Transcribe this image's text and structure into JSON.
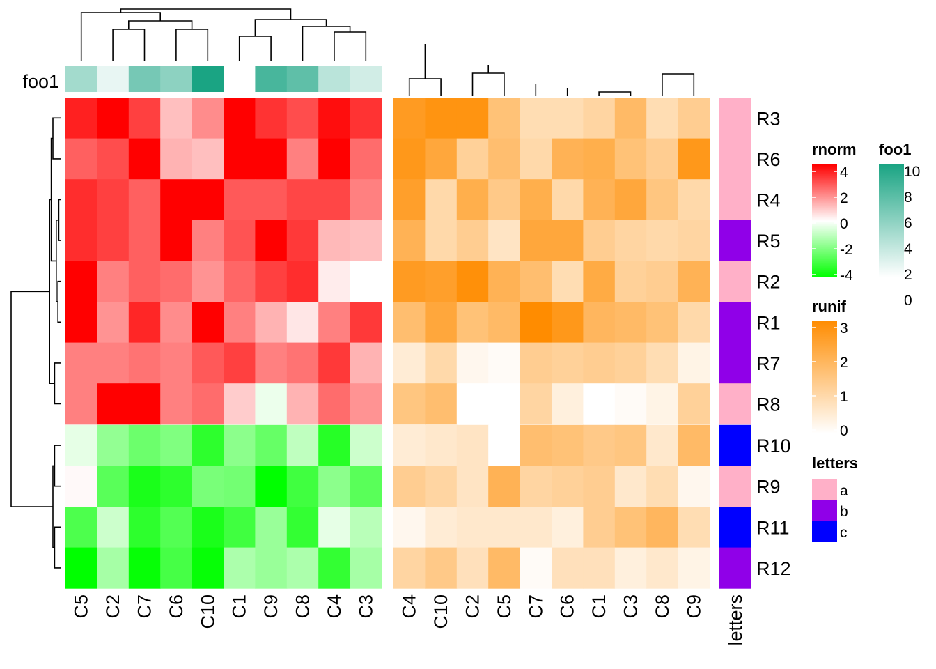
{
  "chart_data": {
    "type": "heatmap",
    "rows": [
      "R3",
      "R6",
      "R4",
      "R5",
      "R2",
      "R1",
      "R7",
      "R8",
      "R10",
      "R9",
      "R11",
      "R12"
    ],
    "heatmaps": [
      {
        "name": "rnorm",
        "columns": [
          "C5",
          "C2",
          "C7",
          "C6",
          "C10",
          "C1",
          "C9",
          "C8",
          "C4",
          "C3"
        ],
        "top_annotation": {
          "name": "foo1",
          "values": [
            4,
            1,
            6,
            5,
            10,
            0,
            8,
            7,
            3,
            2
          ]
        },
        "values": [
          [
            3.5,
            4.0,
            3.0,
            1.0,
            1.8,
            4.0,
            3.2,
            2.8,
            3.8,
            3.2
          ],
          [
            2.5,
            2.8,
            4.0,
            1.2,
            1.0,
            4.0,
            4.0,
            2.0,
            4.0,
            2.3
          ],
          [
            3.3,
            3.0,
            2.5,
            4.0,
            4.0,
            2.6,
            2.6,
            2.9,
            2.9,
            2.0
          ],
          [
            3.3,
            3.0,
            2.5,
            4.0,
            2.0,
            2.7,
            4.0,
            3.1,
            1.1,
            1.0
          ],
          [
            4.0,
            2.0,
            2.5,
            2.3,
            1.7,
            2.4,
            3.0,
            3.3,
            0.3,
            0.0
          ],
          [
            4.0,
            1.7,
            3.4,
            1.8,
            4.0,
            2.0,
            1.2,
            0.4,
            2.0,
            3.1
          ],
          [
            2.0,
            2.0,
            2.2,
            2.0,
            2.6,
            3.0,
            2.0,
            2.2,
            3.1,
            1.2
          ],
          [
            2.0,
            4.0,
            4.0,
            2.0,
            2.3,
            0.8,
            -0.3,
            1.2,
            2.3,
            1.7
          ],
          [
            -0.4,
            -1.7,
            -2.3,
            -2.0,
            -3.3,
            -1.8,
            -2.4,
            -1.0,
            -3.4,
            -0.8
          ],
          [
            0.1,
            -2.6,
            -3.6,
            -3.3,
            -2.1,
            -2.2,
            -4.0,
            -3.0,
            -1.8,
            -2.6
          ],
          [
            -2.8,
            -0.8,
            -3.3,
            -2.7,
            -3.6,
            -3.0,
            -1.6,
            -3.2,
            -0.4,
            -1.1
          ],
          [
            -4.0,
            -1.4,
            -3.9,
            -2.9,
            -3.9,
            -1.3,
            -1.6,
            -1.3,
            -3.2,
            -1.4
          ]
        ],
        "color_scale": {
          "min": -4,
          "mid": 0,
          "max": 4,
          "low": "#00ff00",
          "midcolor": "#ffffff",
          "high": "#ff0000"
        }
      },
      {
        "name": "runif",
        "columns": [
          "C4",
          "C10",
          "C2",
          "C5",
          "C7",
          "C6",
          "C1",
          "C3",
          "C8",
          "C9"
        ],
        "values": [
          [
            2.6,
            2.8,
            2.8,
            1.6,
            0.9,
            0.9,
            1.1,
            1.8,
            0.9,
            1.3
          ],
          [
            2.7,
            2.3,
            1.2,
            1.7,
            1.0,
            2.0,
            2.1,
            1.6,
            1.3,
            2.7
          ],
          [
            2.5,
            1.0,
            2.1,
            1.4,
            2.1,
            1.0,
            2.0,
            2.3,
            1.5,
            1.0
          ],
          [
            2.0,
            1.0,
            1.3,
            0.7,
            2.3,
            2.3,
            1.3,
            1.1,
            1.0,
            1.1
          ],
          [
            2.6,
            2.5,
            2.9,
            2.0,
            1.7,
            0.9,
            2.2,
            1.2,
            1.3,
            2.0
          ],
          [
            1.7,
            2.3,
            1.6,
            1.8,
            3.0,
            2.7,
            1.9,
            1.8,
            1.6,
            1.0
          ],
          [
            0.5,
            1.0,
            0.2,
            0.1,
            1.3,
            1.2,
            1.3,
            1.2,
            0.9,
            0.3
          ],
          [
            1.5,
            1.7,
            0.0,
            0.0,
            1.1,
            0.4,
            0.0,
            0.1,
            0.3,
            1.2
          ],
          [
            0.5,
            0.6,
            0.7,
            0.0,
            1.7,
            1.6,
            1.4,
            1.5,
            0.6,
            1.8
          ],
          [
            1.3,
            1.1,
            0.7,
            2.0,
            1.1,
            1.2,
            1.3,
            0.6,
            0.9,
            0.2
          ],
          [
            0.2,
            0.5,
            0.6,
            0.6,
            0.6,
            0.4,
            1.3,
            1.6,
            1.9,
            0.9
          ],
          [
            1.1,
            1.4,
            0.8,
            1.8,
            0.1,
            0.8,
            0.8,
            0.4,
            0.6,
            0.3
          ]
        ],
        "color_scale": {
          "min": 0,
          "max": 3,
          "low": "#ffffff",
          "high": "#ff8c00"
        }
      }
    ],
    "row_annotation": {
      "name": "letters",
      "values": [
        "a",
        "a",
        "a",
        "b",
        "a",
        "b",
        "b",
        "a",
        "c",
        "a",
        "c",
        "b"
      ]
    },
    "legends": [
      {
        "title": "rnorm",
        "ticks": [
          "4",
          "2",
          "0",
          "-2",
          "-4"
        ]
      },
      {
        "title": "foo1",
        "ticks": [
          "10",
          "8",
          "6",
          "4",
          "2",
          "0"
        ]
      },
      {
        "title": "runif",
        "ticks": [
          "3",
          "2",
          "1",
          "0"
        ]
      },
      {
        "title": "letters",
        "items": [
          {
            "label": "a",
            "color": "#ffb0c8"
          },
          {
            "label": "b",
            "color": "#9000e8"
          },
          {
            "label": "c",
            "color": "#0000ff"
          }
        ]
      }
    ],
    "colors": {
      "foo1_low": "#ffffff",
      "foo1_high": "#1aa483",
      "a": "#ffb0c8",
      "b": "#9000e8",
      "c": "#0000ff"
    },
    "row_split": [
      8,
      4
    ]
  }
}
